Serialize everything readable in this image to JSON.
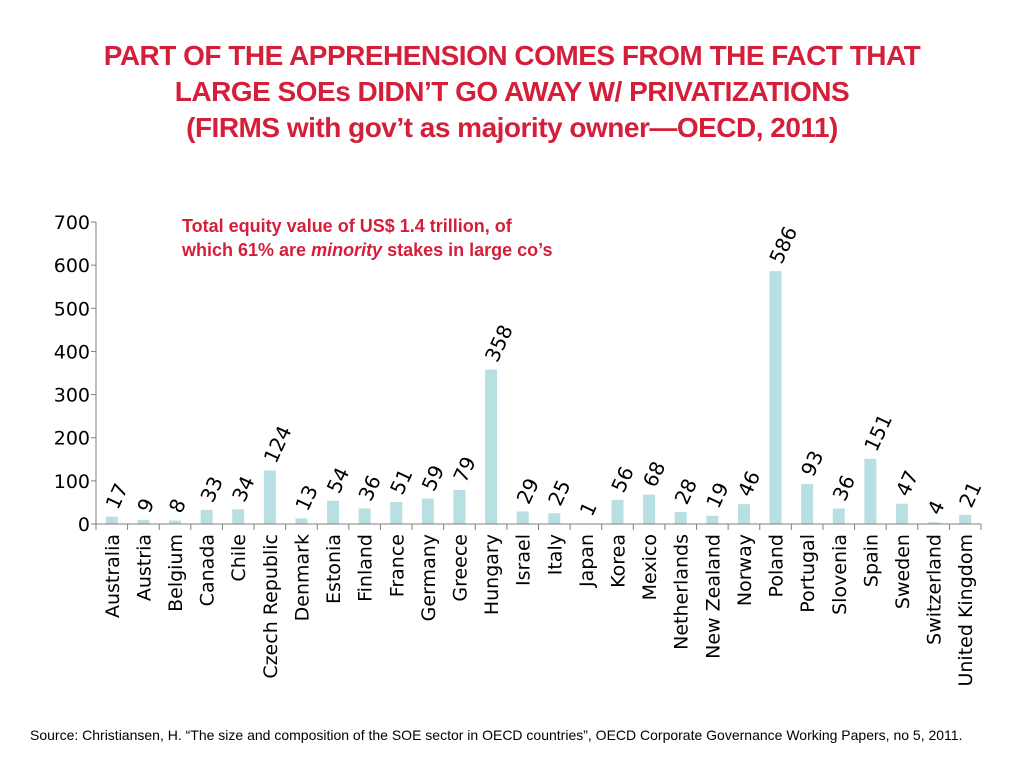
{
  "title": {
    "line1": "PART OF THE APPREHENSION COMES FROM THE FACT THAT",
    "line2": "LARGE SOEs DIDN’T GO AWAY  W/ PRIVATIZATIONS",
    "line3": "(FIRMS with gov’t as majority owner—OECD, 2011)"
  },
  "annotation": {
    "line1": "Total equity value of US$ 1.4 trillion, of",
    "line2_prefix": "which 61% are ",
    "line2_emphasis": "minority",
    "line2_suffix": " stakes in large co’s"
  },
  "source": "Source: Christiansen, H. “The size and composition of the SOE sector in OECD countries”, OECD Corporate Governance Working Papers, no 5, 2011.",
  "colors": {
    "bar": "#b8dfe2",
    "title": "#d41f3a",
    "axis": "#7f7f7f"
  },
  "chart_data": {
    "type": "bar",
    "title": "",
    "xlabel": "",
    "ylabel": "",
    "ylim": [
      0,
      700
    ],
    "yticks": [
      "0",
      "100",
      "200",
      "300",
      "400",
      "500",
      "600",
      "700"
    ],
    "grid": false,
    "categories": [
      "Australia",
      "Austria",
      "Belgium",
      "Canada",
      "Chile",
      "Czech Republic",
      "Denmark",
      "Estonia",
      "Finland",
      "France",
      "Germany",
      "Greece",
      "Hungary",
      "Israel",
      "Italy",
      "Japan",
      "Korea",
      "Mexico",
      "Netherlands",
      "New Zealand",
      "Norway",
      "Poland",
      "Portugal",
      "Slovenia",
      "Spain",
      "Sweden",
      "Switzerland",
      "United Kingdom"
    ],
    "values": [
      17,
      9,
      8,
      33,
      34,
      124,
      13,
      54,
      36,
      51,
      59,
      79,
      358,
      29,
      25,
      1,
      56,
      68,
      28,
      19,
      46,
      586,
      93,
      36,
      151,
      47,
      4,
      21
    ]
  }
}
